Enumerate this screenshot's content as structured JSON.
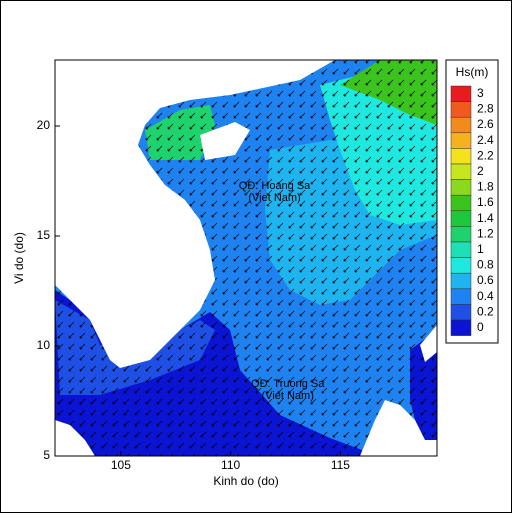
{
  "chart_data": {
    "type": "contour-map",
    "x_label": "Kinh do (do)",
    "y_label": "Vi do (do)",
    "xlim": [
      102,
      119.4
    ],
    "xticks": [
      105,
      110,
      115
    ],
    "ylim": [
      5,
      23
    ],
    "yticks": [
      5,
      10,
      15,
      20
    ],
    "annotations": [
      {
        "lines": [
          "QĐ. Hoang Sa",
          "(Viet Nam)"
        ],
        "x": 112,
        "y": 17
      },
      {
        "lines": [
          "QĐ. Truong Sa",
          "(Viet Nam)"
        ],
        "x": 112.6,
        "y": 8
      }
    ],
    "colorbar": {
      "title": "Hs(m)",
      "levels": [
        3,
        2.8,
        2.6,
        2.4,
        2.2,
        2,
        1.8,
        1.6,
        1.4,
        1.2,
        1,
        0.8,
        0.6,
        0.4,
        0.2,
        0
      ],
      "colors": [
        "#e81c1c",
        "#f05a1a",
        "#f28a1c",
        "#f5b21e",
        "#f5e21e",
        "#c8e61e",
        "#8cd81e",
        "#3cc41e",
        "#1ec83c",
        "#1ed26e",
        "#1ee0b4",
        "#1ee8e0",
        "#1eb4f0",
        "#1e82f0",
        "#1e50e6",
        "#0a14d2"
      ]
    }
  }
}
